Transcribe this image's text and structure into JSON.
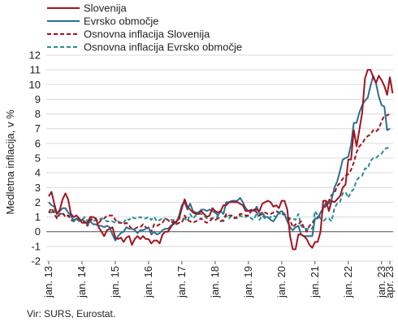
{
  "chart_data": {
    "type": "line",
    "ylabel": "Medletna inflacija, v %",
    "ylim": [
      -2,
      12
    ],
    "yticks": [
      -2,
      -1,
      0,
      1,
      2,
      3,
      4,
      5,
      6,
      7,
      8,
      9,
      10,
      11,
      12
    ],
    "x_range": [
      "2013-01",
      "2023-04"
    ],
    "xticks": [
      "jan. 13",
      "jan. 14",
      "jan. 15",
      "jan. 16",
      "jan. 17",
      "jan. 18",
      "jan. 19",
      "jan. 20",
      "jan. 21",
      "jan. 22",
      "jan. 23",
      "apr. 23"
    ],
    "grid": "horizontal",
    "legend_position": "top-left",
    "series": [
      {
        "name": "Slovenija",
        "color": "#a0141e",
        "dash": "solid",
        "values": [
          2.4,
          2.7,
          1.9,
          1.2,
          1.5,
          2.2,
          2.6,
          2.2,
          1.2,
          1.0,
          1.1,
          0.9,
          0.6,
          0.6,
          0.6,
          1.0,
          1.0,
          0.9,
          0.3,
          0.0,
          -0.3,
          0.1,
          0.2,
          0.3,
          -0.4,
          -0.5,
          -0.4,
          -0.7,
          -0.4,
          -0.3,
          -0.9,
          -0.5,
          -0.3,
          -0.5,
          -0.3,
          -0.5,
          -0.5,
          -0.8,
          -0.6,
          -0.6,
          -0.8,
          -0.2,
          0.0,
          0.0,
          0.3,
          0.6,
          0.7,
          0.9,
          1.6,
          2.2,
          1.7,
          1.5,
          1.3,
          1.2,
          1.2,
          1.4,
          1.2,
          1.0,
          1.1,
          1.6,
          1.4,
          1.3,
          1.4,
          1.8,
          1.8,
          2.0,
          2.0,
          2.0,
          2.0,
          1.9,
          1.8,
          1.4,
          1.4,
          1.4,
          1.5,
          1.5,
          1.4,
          1.9,
          2.0,
          2.1,
          2.0,
          1.7,
          1.8,
          1.6,
          2.1,
          2.1,
          1.5,
          -0.3,
          -1.2,
          -1.2,
          -0.2,
          -0.2,
          -0.3,
          -0.5,
          -0.9,
          -1.1,
          -0.7,
          -0.7,
          0.0,
          2.1,
          2.1,
          1.4,
          2.1,
          2.0,
          2.2,
          2.4,
          3.0,
          3.2,
          4.9,
          4.9,
          6.9,
          5.8,
          6.9,
          8.1,
          10.4,
          11.0,
          11.0,
          10.5,
          10.1,
          10.6,
          10.3,
          9.9,
          9.3,
          10.5,
          9.4
        ],
        "min_note": "monthly values jan. 13 - apr. 23"
      },
      {
        "name": "Evrsko območje",
        "color": "#2c6e8f",
        "dash": "solid",
        "values": [
          2.0,
          1.8,
          1.7,
          1.2,
          1.4,
          1.6,
          1.6,
          1.3,
          1.1,
          0.7,
          0.9,
          0.8,
          0.8,
          0.7,
          0.5,
          0.7,
          0.5,
          0.5,
          0.4,
          0.4,
          0.3,
          0.4,
          0.3,
          -0.2,
          -0.6,
          -0.3,
          -0.1,
          0.0,
          0.3,
          0.2,
          0.2,
          0.1,
          -0.1,
          0.1,
          0.1,
          0.2,
          0.3,
          -0.2,
          0.0,
          -0.2,
          -0.1,
          0.1,
          0.2,
          0.2,
          0.4,
          0.5,
          0.6,
          1.1,
          1.8,
          2.0,
          1.5,
          1.9,
          1.4,
          1.3,
          1.3,
          1.5,
          1.5,
          1.4,
          1.5,
          1.4,
          1.3,
          1.1,
          1.4,
          1.2,
          2.0,
          2.0,
          2.1,
          2.1,
          2.1,
          2.3,
          2.0,
          1.6,
          1.4,
          1.5,
          1.4,
          1.7,
          1.2,
          1.3,
          1.0,
          1.0,
          0.8,
          0.7,
          1.0,
          1.3,
          1.4,
          1.2,
          0.7,
          0.3,
          0.1,
          0.3,
          0.4,
          -0.2,
          -0.3,
          -0.3,
          -0.3,
          -0.3,
          0.9,
          0.9,
          1.3,
          1.6,
          2.0,
          1.9,
          2.2,
          3.0,
          3.4,
          4.1,
          4.9,
          5.0,
          5.1,
          5.9,
          7.4,
          7.4,
          8.1,
          8.6,
          8.9,
          9.1,
          9.9,
          10.6,
          10.1,
          9.2,
          8.6,
          8.5,
          6.9,
          7.0
        ],
        "min_note": "monthly values jan. 13 - apr. 23"
      },
      {
        "name": "Osnovna inflacija Slovenija",
        "color": "#a0141e",
        "dash": "dashed",
        "values": [
          1.3,
          1.6,
          1.2,
          0.9,
          1.2,
          1.3,
          1.0,
          1.1,
          0.8,
          0.7,
          0.8,
          0.8,
          0.9,
          0.6,
          0.4,
          0.8,
          0.8,
          0.9,
          0.6,
          0.8,
          0.9,
          1.1,
          1.1,
          1.1,
          0.8,
          0.6,
          0.6,
          0.5,
          0.6,
          0.4,
          0.2,
          0.2,
          0.3,
          0.3,
          0.5,
          0.3,
          0.2,
          0.0,
          0.5,
          0.4,
          0.5,
          0.6,
          0.9,
          0.8,
          0.6,
          0.7,
          0.5,
          0.6,
          0.6,
          1.1,
          0.8,
          0.7,
          0.6,
          0.7,
          0.8,
          0.9,
          0.7,
          0.6,
          0.7,
          0.9,
          0.8,
          0.9,
          0.7,
          0.8,
          1.2,
          1.1,
          1.1,
          0.9,
          1.0,
          1.2,
          1.2,
          1.1,
          1.1,
          1.4,
          1.5,
          1.3,
          1.1,
          1.2,
          1.3,
          1.2,
          1.2,
          1.3,
          1.4,
          1.3,
          1.2,
          1.2,
          1.0,
          0.8,
          0.3,
          0.5,
          0.5,
          0.7,
          0.3,
          0.0,
          0.4,
          0.6,
          0.8,
          1.0,
          1.1,
          1.5,
          1.8,
          2.1,
          2.5,
          2.6,
          3.1,
          3.3,
          3.6,
          3.8,
          3.9,
          4.2,
          4.7,
          5.4,
          5.8,
          6.0,
          6.3,
          6.5,
          6.6,
          6.9,
          6.8,
          7.0,
          7.5,
          7.9,
          7.9,
          8.0
        ],
        "min_note": "monthly values jan. 13 - apr. 23"
      },
      {
        "name": "Osnovna inflacija Evrsko območje",
        "color": "#2a8d8f",
        "dash": "dashed",
        "values": [
          1.3,
          1.3,
          1.5,
          1.0,
          1.2,
          1.2,
          1.1,
          1.1,
          1.0,
          0.8,
          0.9,
          0.7,
          0.8,
          1.0,
          0.7,
          1.0,
          0.7,
          0.8,
          0.8,
          0.9,
          0.8,
          0.7,
          0.7,
          0.7,
          0.6,
          0.7,
          0.6,
          0.6,
          0.9,
          0.8,
          1.0,
          0.9,
          0.9,
          1.0,
          0.9,
          0.9,
          1.0,
          0.8,
          1.0,
          0.7,
          0.8,
          0.9,
          0.9,
          0.8,
          0.8,
          0.8,
          0.8,
          0.9,
          0.9,
          0.9,
          0.7,
          1.2,
          0.9,
          1.1,
          1.2,
          1.2,
          1.1,
          0.9,
          0.9,
          0.9,
          1.0,
          1.0,
          0.8,
          0.7,
          1.1,
          0.9,
          1.1,
          1.0,
          0.9,
          1.1,
          1.0,
          1.0,
          1.1,
          0.9,
          0.8,
          1.3,
          0.8,
          1.1,
          0.9,
          0.9,
          1.0,
          1.1,
          1.0,
          1.3,
          1.1,
          1.2,
          1.0,
          0.9,
          0.9,
          0.8,
          1.2,
          0.4,
          0.2,
          0.2,
          0.2,
          0.2,
          1.4,
          1.1,
          0.9,
          0.7,
          0.9,
          0.9,
          0.7,
          1.6,
          1.9,
          2.0,
          2.6,
          2.7,
          2.3,
          2.7,
          2.9,
          3.5,
          3.7,
          3.8,
          4.3,
          4.3,
          4.8,
          5.0,
          5.0,
          5.2,
          5.3,
          5.6,
          5.7,
          5.6
        ],
        "min_note": "monthly values jan. 13 - apr. 23"
      }
    ],
    "source": "Vir: SURS, Eurostat."
  }
}
